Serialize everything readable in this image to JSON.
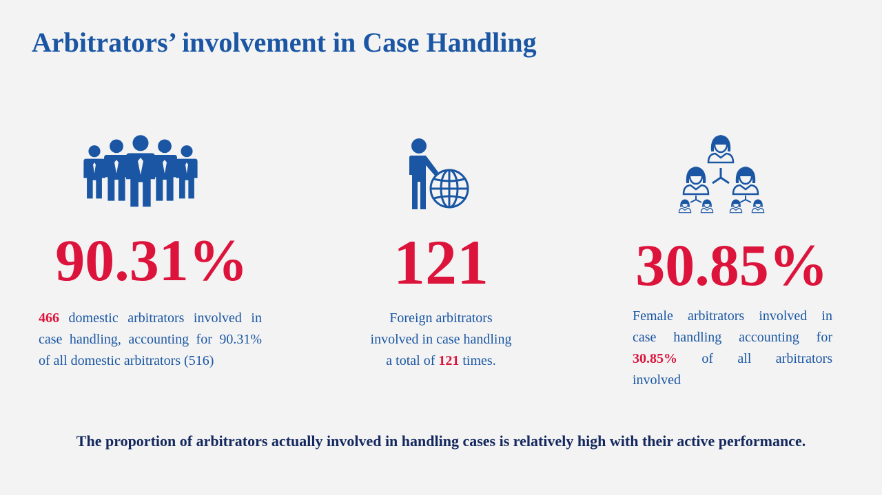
{
  "title": "Arbitrators’ involvement in Case Handling",
  "stats": [
    {
      "icon": "group-of-men-icon",
      "value": "90.31%",
      "desc_hl": "466",
      "desc_line1_rest": " domestic arbitrators involved in",
      "desc_line2": "case handling, accounting for 90.31%",
      "desc_line3": "of all domestic arbitrators (516)"
    },
    {
      "icon": "man-with-globe-icon",
      "value": "121",
      "desc_line1": "Foreign arbitrators",
      "desc_line2": "involved in case handling",
      "desc_line3_pre": "a total of ",
      "desc_hl": "121",
      "desc_line3_post": " times."
    },
    {
      "icon": "female-network-icon",
      "value": "30.85%",
      "desc_line1": "Female arbitrators involved in",
      "desc_line2": "case handling accounting for",
      "desc_hl": "30.85%",
      "desc_line3_rest": " of all arbitrators",
      "desc_line4": "involved"
    }
  ],
  "footer": "The proportion of arbitrators actually involved in handling cases is relatively high with their active performance.",
  "colors": {
    "blue": "#1a56a3",
    "red": "#dc143c",
    "navy": "#14285e",
    "background": "#f3f3f3"
  }
}
